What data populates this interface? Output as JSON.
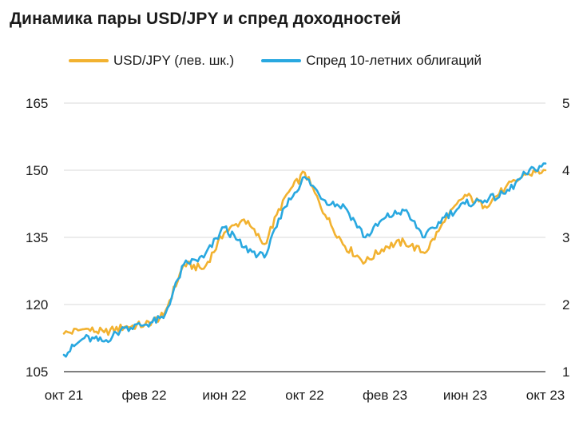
{
  "title": "Динамика пары USD/JPY и спред доходностей",
  "chart_data": {
    "type": "line",
    "title": "Динамика пары USD/JPY и спред доходностей",
    "x_tick_labels": [
      "окт 21",
      "фев 22",
      "июн 22",
      "окт 22",
      "фев 23",
      "июн 23",
      "окт 23"
    ],
    "x_range": [
      "2021-10",
      "2023-10"
    ],
    "left_axis": {
      "ticks": [
        105,
        120,
        135,
        150,
        165
      ],
      "ylim": [
        105,
        165
      ]
    },
    "right_axis": {
      "ticks": [
        1,
        2,
        3,
        4,
        5
      ],
      "ylim": [
        1,
        5
      ]
    },
    "grid": "horizontal",
    "legend_position": "top",
    "series": [
      {
        "name": "USD/JPY (лев. шк.)",
        "axis": "left",
        "color": "#F2B230",
        "x": [
          "2021-10-01",
          "2021-11-01",
          "2021-12-01",
          "2022-01-01",
          "2022-02-01",
          "2022-03-01",
          "2022-04-01",
          "2022-05-01",
          "2022-06-01",
          "2022-07-01",
          "2022-08-01",
          "2022-09-01",
          "2022-10-01",
          "2022-11-01",
          "2022-12-01",
          "2023-01-01",
          "2023-02-01",
          "2023-03-01",
          "2023-04-01",
          "2023-05-01",
          "2023-06-01",
          "2023-07-01",
          "2023-08-01",
          "2023-09-01",
          "2023-10-01"
        ],
        "y": [
          113.5,
          114.5,
          113.8,
          115,
          115.5,
          117.5,
          129,
          128,
          136,
          139,
          133.5,
          144,
          149.5,
          140,
          133,
          129.5,
          133,
          134,
          131.5,
          138.5,
          144.5,
          142,
          146,
          149,
          150
        ]
      },
      {
        "name": "Спред 10-летних облигаций",
        "axis": "right",
        "color": "#29A8E0",
        "x": [
          "2021-10-01",
          "2021-11-01",
          "2021-12-01",
          "2022-01-01",
          "2022-02-01",
          "2022-03-01",
          "2022-04-01",
          "2022-05-01",
          "2022-06-01",
          "2022-07-01",
          "2022-08-01",
          "2022-09-01",
          "2022-10-01",
          "2022-11-01",
          "2022-12-01",
          "2023-01-01",
          "2023-02-01",
          "2023-03-01",
          "2023-04-01",
          "2023-05-01",
          "2023-06-01",
          "2023-07-01",
          "2023-08-01",
          "2023-09-01",
          "2023-10-01"
        ],
        "y": [
          1.25,
          1.5,
          1.45,
          1.65,
          1.7,
          1.8,
          2.6,
          2.7,
          3.15,
          2.85,
          2.7,
          3.45,
          3.9,
          3.55,
          3.45,
          3.0,
          3.3,
          3.4,
          3.0,
          3.3,
          3.5,
          3.55,
          3.65,
          3.95,
          4.1
        ]
      }
    ]
  }
}
